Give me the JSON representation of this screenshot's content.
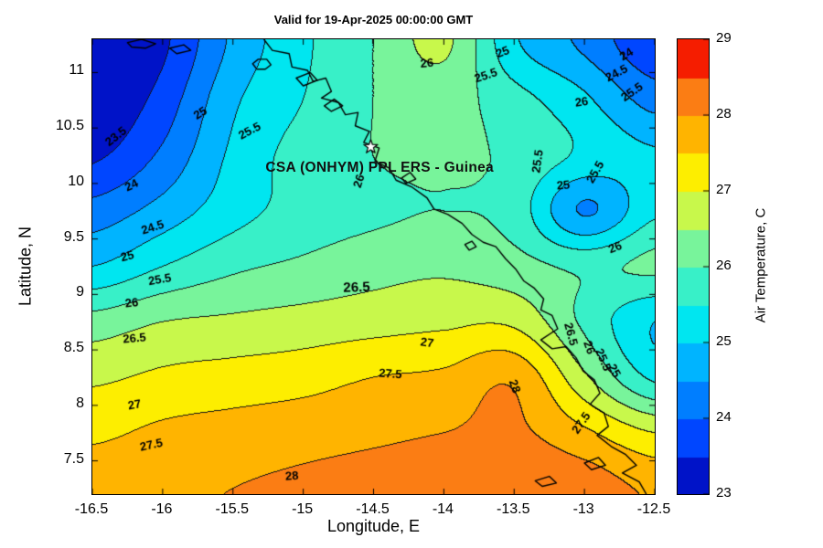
{
  "chart_data": {
    "type": "heatmap",
    "variant": "filled-contour-map",
    "title": "Valid for 19-Apr-2025 00:00:00 GMT",
    "xlabel": "Longitude, E",
    "ylabel": "Latitude, N",
    "xlim": [
      -16.5,
      -12.5
    ],
    "ylim": [
      7.2,
      11.3
    ],
    "xtick_values": [
      -16.5,
      -16,
      -15.5,
      -15,
      -14.5,
      -14,
      -13.5,
      -13,
      -12.5
    ],
    "xtick_labels": [
      "-16.5",
      "-16",
      "-15.5",
      "-15",
      "-14.5",
      "-14",
      "-13.5",
      "-13",
      "-12.5"
    ],
    "ytick_values": [
      7.5,
      8,
      8.5,
      9,
      9.5,
      10,
      10.5,
      11
    ],
    "ytick_labels": [
      "7.5",
      "8",
      "8.5",
      "9",
      "9.5",
      "10",
      "10.5",
      "11"
    ],
    "contour_interval": 0.5,
    "levels": [
      23.5,
      24,
      24.5,
      25,
      25.5,
      26,
      26.5,
      27,
      27.5,
      28,
      28.5
    ],
    "grid_lon": [
      -16.5,
      -16,
      -15.5,
      -15,
      -14.5,
      -14,
      -13.5,
      -13,
      -12.5
    ],
    "grid_lat": [
      11.25,
      10.75,
      10.25,
      9.75,
      9.25,
      8.75,
      8.25,
      7.75,
      7.25
    ],
    "temperature_grid": [
      [
        22.8,
        23.4,
        24.6,
        25.4,
        26.0,
        26.6,
        25.1,
        24.4,
        23.6
      ],
      [
        23.0,
        23.7,
        24.9,
        25.5,
        26.0,
        26.2,
        25.7,
        25.1,
        24.3
      ],
      [
        23.4,
        24.1,
        25.1,
        25.7,
        26.0,
        26.1,
        25.9,
        25.4,
        25.1
      ],
      [
        24.2,
        24.7,
        25.3,
        25.7,
        25.9,
        26.0,
        25.8,
        24.45,
        25.4
      ],
      [
        25.0,
        25.5,
        25.9,
        26.1,
        26.3,
        26.4,
        26.2,
        25.9,
        26.1
      ],
      [
        26.2,
        26.5,
        26.6,
        26.7,
        26.8,
        26.9,
        26.9,
        25.9,
        25.0
      ],
      [
        26.9,
        27.1,
        27.2,
        27.3,
        27.5,
        27.6,
        27.9,
        26.6,
        25.4
      ],
      [
        27.4,
        27.6,
        27.7,
        27.8,
        27.9,
        28.0,
        28.1,
        27.6,
        27.0
      ],
      [
        27.8,
        27.9,
        28.0,
        28.1,
        28.2,
        28.3,
        28.4,
        28.3,
        27.9
      ]
    ],
    "colorbar": {
      "label": "Air Temperature, C",
      "min": 23,
      "max": 29,
      "ticks": [
        23,
        24,
        25,
        26,
        27,
        28,
        29
      ],
      "band_colors": [
        "#0013c8",
        "#0046ff",
        "#007eff",
        "#00b4ff",
        "#00e6f0",
        "#38f0c8",
        "#78f49b",
        "#c8f84b",
        "#fdee00",
        "#ffb400",
        "#fb7d14",
        "#f51d00"
      ]
    },
    "contour_labels": [
      {
        "t": "23.5",
        "lon": -16.33,
        "lat": 10.42,
        "rot": -38
      },
      {
        "t": "24",
        "lon": -16.22,
        "lat": 9.98,
        "rot": -25
      },
      {
        "t": "24.5",
        "lon": -16.07,
        "lat": 9.6,
        "rot": -18
      },
      {
        "t": "25",
        "lon": -16.25,
        "lat": 9.34,
        "rot": -14
      },
      {
        "t": "25.5",
        "lon": -16.02,
        "lat": 9.13,
        "rot": -10
      },
      {
        "t": "26",
        "lon": -16.22,
        "lat": 8.92,
        "rot": -6
      },
      {
        "t": "26.5",
        "lon": -16.2,
        "lat": 8.6,
        "rot": -5
      },
      {
        "t": "27",
        "lon": -16.2,
        "lat": 8.0,
        "rot": -10
      },
      {
        "t": "27.5",
        "lon": -16.08,
        "lat": 7.64,
        "rot": -12
      },
      {
        "t": "28",
        "lon": -15.08,
        "lat": 7.36,
        "rot": -4
      },
      {
        "t": "25",
        "lon": -15.73,
        "lat": 10.63,
        "rot": -33
      },
      {
        "t": "25.5",
        "lon": -15.38,
        "lat": 10.47,
        "rot": -28
      },
      {
        "t": "26",
        "lon": -14.6,
        "lat": 10.02,
        "rot": -72
      },
      {
        "t": "26",
        "lon": -14.12,
        "lat": 11.08,
        "rot": -5
      },
      {
        "t": "25.5",
        "lon": -13.7,
        "lat": 10.97,
        "rot": -18
      },
      {
        "t": "25",
        "lon": -13.58,
        "lat": 11.18,
        "rot": -22
      },
      {
        "t": "26",
        "lon": -13.02,
        "lat": 10.73,
        "rot": -8
      },
      {
        "t": "24",
        "lon": -12.7,
        "lat": 11.16,
        "rot": -32
      },
      {
        "t": "24.5",
        "lon": -12.77,
        "lat": 10.99,
        "rot": -28
      },
      {
        "t": "25.5",
        "lon": -12.66,
        "lat": 10.82,
        "rot": -35
      },
      {
        "t": "25.5",
        "lon": -13.33,
        "lat": 10.2,
        "rot": -82
      },
      {
        "t": "25",
        "lon": -13.15,
        "lat": 9.98,
        "rot": -5
      },
      {
        "t": "25.5",
        "lon": -12.92,
        "lat": 10.1,
        "rot": -60
      },
      {
        "t": "26",
        "lon": -12.78,
        "lat": 9.42,
        "rot": -22
      },
      {
        "t": "26.5",
        "lon": -14.62,
        "lat": 9.06,
        "rot": -2,
        "size": 15
      },
      {
        "t": "27",
        "lon": -14.12,
        "lat": 8.56,
        "rot": 8
      },
      {
        "t": "27.5",
        "lon": -14.38,
        "lat": 8.28,
        "rot": 4
      },
      {
        "t": "28",
        "lon": -13.5,
        "lat": 8.17,
        "rot": 70
      },
      {
        "t": "27.5",
        "lon": -13.02,
        "lat": 7.84,
        "rot": -55
      },
      {
        "t": "26.5",
        "lon": -13.1,
        "lat": 8.64,
        "rot": 75
      },
      {
        "t": "26",
        "lon": -12.97,
        "lat": 8.52,
        "rot": 70
      },
      {
        "t": "25.5",
        "lon": -12.87,
        "lat": 8.41,
        "rot": 66
      },
      {
        "t": "25",
        "lon": -12.79,
        "lat": 8.31,
        "rot": 60
      }
    ],
    "coastline": [
      [
        -15.28,
        11.3
      ],
      [
        -15.22,
        11.2
      ],
      [
        -15.1,
        11.17
      ],
      [
        -15.08,
        11.05
      ],
      [
        -14.97,
        11.02
      ],
      [
        -14.93,
        10.92
      ],
      [
        -14.84,
        10.95
      ],
      [
        -14.8,
        10.83
      ],
      [
        -14.87,
        10.77
      ],
      [
        -14.75,
        10.73
      ],
      [
        -14.7,
        10.62
      ],
      [
        -14.61,
        10.64
      ],
      [
        -14.63,
        10.52
      ],
      [
        -14.53,
        10.47
      ],
      [
        -14.57,
        10.37
      ],
      [
        -14.46,
        10.32
      ],
      [
        -14.49,
        10.2
      ],
      [
        -14.39,
        10.14
      ],
      [
        -14.34,
        10.03
      ],
      [
        -14.23,
        9.97
      ],
      [
        -14.12,
        9.87
      ],
      [
        -14.07,
        9.77
      ],
      [
        -13.97,
        9.72
      ],
      [
        -13.87,
        9.64
      ],
      [
        -13.8,
        9.54
      ],
      [
        -13.72,
        9.47
      ],
      [
        -13.63,
        9.43
      ],
      [
        -13.56,
        9.32
      ],
      [
        -13.49,
        9.23
      ],
      [
        -13.43,
        9.12
      ],
      [
        -13.36,
        9.06
      ],
      [
        -13.29,
        8.96
      ],
      [
        -13.31,
        8.86
      ],
      [
        -13.23,
        8.81
      ],
      [
        -13.19,
        8.69
      ],
      [
        -13.31,
        8.59
      ],
      [
        -13.23,
        8.51
      ],
      [
        -13.13,
        8.53
      ],
      [
        -13.06,
        8.43
      ],
      [
        -13.01,
        8.31
      ],
      [
        -12.93,
        8.23
      ],
      [
        -12.89,
        8.11
      ],
      [
        -12.96,
        8.01
      ],
      [
        -12.86,
        7.93
      ],
      [
        -12.83,
        7.81
      ],
      [
        -12.91,
        7.73
      ],
      [
        -12.81,
        7.63
      ],
      [
        -12.71,
        7.56
      ],
      [
        -12.63,
        7.46
      ],
      [
        -12.73,
        7.39
      ],
      [
        -12.61,
        7.31
      ],
      [
        -12.56,
        7.2
      ]
    ],
    "islands": [
      [
        [
          -16.25,
          11.27
        ],
        [
          -16.15,
          11.3
        ],
        [
          -16.05,
          11.26
        ],
        [
          -16.12,
          11.22
        ],
        [
          -16.22,
          11.23
        ]
      ],
      [
        [
          -15.95,
          11.22
        ],
        [
          -15.85,
          11.25
        ],
        [
          -15.8,
          11.2
        ],
        [
          -15.9,
          11.17
        ]
      ],
      [
        [
          -15.36,
          11.08
        ],
        [
          -15.32,
          11.12
        ],
        [
          -15.26,
          11.12
        ],
        [
          -15.23,
          11.07
        ],
        [
          -15.27,
          11.03
        ],
        [
          -15.33,
          11.03
        ]
      ],
      [
        [
          -15.05,
          10.95
        ],
        [
          -14.95,
          11.0
        ],
        [
          -14.9,
          10.93
        ],
        [
          -15.0,
          10.88
        ]
      ],
      [
        [
          -14.85,
          10.7
        ],
        [
          -14.78,
          10.76
        ],
        [
          -14.72,
          10.7
        ],
        [
          -14.8,
          10.65
        ]
      ],
      [
        [
          -14.3,
          10.05
        ],
        [
          -14.24,
          10.1
        ],
        [
          -14.2,
          10.04
        ],
        [
          -14.27,
          10.0
        ]
      ],
      [
        [
          -13.85,
          9.45
        ],
        [
          -13.8,
          9.48
        ],
        [
          -13.77,
          9.43
        ],
        [
          -13.82,
          9.4
        ]
      ],
      [
        [
          -13.0,
          7.48
        ],
        [
          -12.9,
          7.53
        ],
        [
          -12.85,
          7.46
        ],
        [
          -12.95,
          7.42
        ]
      ],
      [
        [
          -13.35,
          7.32
        ],
        [
          -13.25,
          7.36
        ],
        [
          -13.2,
          7.3
        ],
        [
          -13.3,
          7.27
        ]
      ]
    ],
    "star_marker": {
      "lon": -14.52,
      "lat": 10.33
    },
    "annotation": {
      "text": "CSA (ONHYM) PPL ERS  - Guinea",
      "lon": -14.45,
      "lat": 10.13
    }
  }
}
